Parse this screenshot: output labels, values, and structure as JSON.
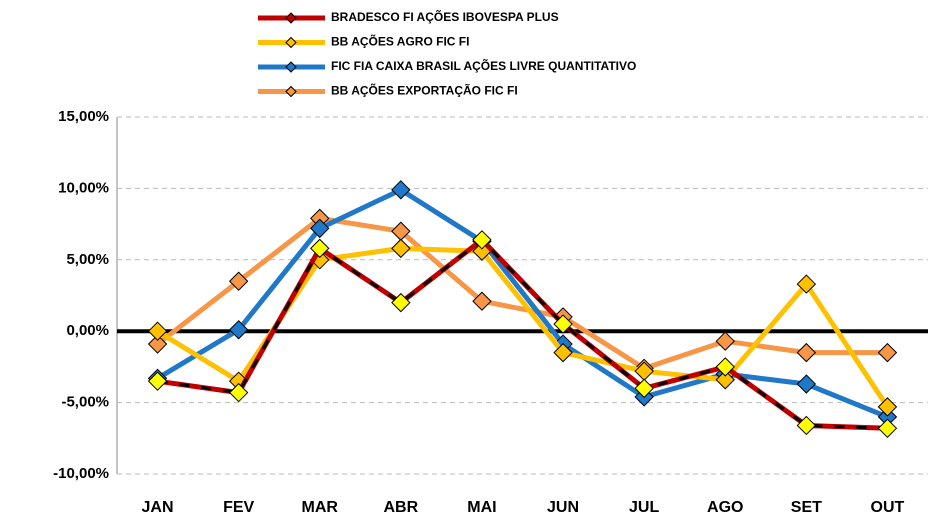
{
  "chart_data": {
    "type": "line",
    "categories": [
      "JAN",
      "FEV",
      "MAR",
      "ABR",
      "MAI",
      "JUN",
      "JUL",
      "AGO",
      "SET",
      "OUT"
    ],
    "series": [
      {
        "name": "BRADESCO FI AÇÕES IBOVESPA PLUS",
        "color": "#c00000",
        "marker_color": "#ffff00",
        "values": [
          -3.5,
          -4.3,
          5.8,
          2.0,
          6.4,
          0.5,
          -4.0,
          -2.5,
          -6.6,
          -6.8
        ]
      },
      {
        "name": "BB AÇÕES AGRO FIC FI",
        "color": "#ffc000",
        "marker_color": "#ffc000",
        "values": [
          0.0,
          -3.5,
          5.0,
          5.8,
          5.6,
          -1.5,
          -2.8,
          -3.4,
          3.3,
          -5.3
        ]
      },
      {
        "name": "FIC FIA CAIXA BRASIL AÇÕES LIVRE QUANTITATIVO",
        "color": "#1f78c8",
        "marker_color": "#1f78c8",
        "values": [
          -3.3,
          0.1,
          7.2,
          9.9,
          6.3,
          -0.9,
          -4.6,
          -3.0,
          -3.7,
          -6.0
        ]
      },
      {
        "name": "BB AÇÕES EXPORTAÇÃO FIC FI",
        "color": "#f79646",
        "marker_color": "#f79646",
        "values": [
          -0.9,
          3.5,
          7.9,
          7.0,
          2.1,
          1.0,
          -2.6,
          -0.7,
          -1.5,
          -1.5
        ]
      }
    ],
    "ylim": [
      -10,
      15
    ],
    "yticks": [
      {
        "value": -10,
        "label": "-10,00%"
      },
      {
        "value": -5,
        "label": "-5,00%"
      },
      {
        "value": 0,
        "label": "0,00%"
      },
      {
        "value": 5,
        "label": "5,00%"
      },
      {
        "value": 10,
        "label": "10,00%"
      },
      {
        "value": 15,
        "label": "15,00%"
      }
    ],
    "grid": true,
    "legend": "top"
  }
}
